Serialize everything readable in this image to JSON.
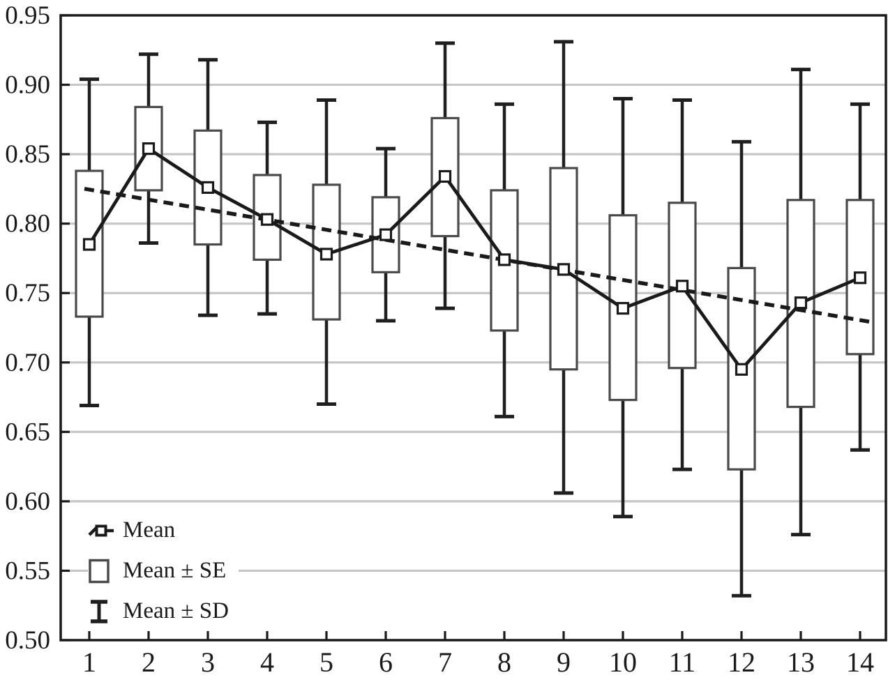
{
  "chart_data": {
    "type": "box",
    "title": "",
    "xlabel": "",
    "ylabel": "",
    "description": "Means with Mean±SE boxes, Mean±SD whiskers and dashed linear trend across 14 categories",
    "categories": [
      "1",
      "2",
      "3",
      "4",
      "5",
      "6",
      "7",
      "8",
      "9",
      "10",
      "11",
      "12",
      "13",
      "14"
    ],
    "ylim": [
      0.5,
      0.95
    ],
    "grid": true,
    "yticks": [
      {
        "label": "0.95",
        "value": 0.95,
        "grid": false
      },
      {
        "label": "0.90",
        "value": 0.9,
        "grid": true
      },
      {
        "label": "0.85",
        "value": 0.85,
        "grid": true
      },
      {
        "label": "0.80",
        "value": 0.8,
        "grid": true
      },
      {
        "label": "0.75",
        "value": 0.75,
        "grid": true
      },
      {
        "label": "0.70",
        "value": 0.7,
        "grid": true
      },
      {
        "label": "0.65",
        "value": 0.65,
        "grid": true
      },
      {
        "label": "0.60",
        "value": 0.6,
        "grid": true
      },
      {
        "label": "0.55",
        "value": 0.55,
        "grid": true
      },
      {
        "label": "0.50",
        "value": 0.5,
        "grid": false
      }
    ],
    "series": [
      {
        "name": "Mean",
        "type": "line",
        "marker": "open-square",
        "values": [
          0.785,
          0.854,
          0.826,
          0.803,
          0.778,
          0.792,
          0.834,
          0.774,
          0.767,
          0.739,
          0.755,
          0.695,
          0.743,
          0.761
        ]
      },
      {
        "name": "Mean ± SE",
        "type": "box",
        "high": [
          0.838,
          0.884,
          0.867,
          0.835,
          0.828,
          0.819,
          0.876,
          0.824,
          0.84,
          0.806,
          0.815,
          0.768,
          0.817,
          0.817
        ],
        "low": [
          0.733,
          0.824,
          0.785,
          0.774,
          0.731,
          0.765,
          0.791,
          0.723,
          0.695,
          0.673,
          0.696,
          0.623,
          0.668,
          0.706
        ]
      },
      {
        "name": "Mean ± SD",
        "type": "whisker",
        "high": [
          0.904,
          0.922,
          0.918,
          0.873,
          0.889,
          0.854,
          0.93,
          0.886,
          0.931,
          0.89,
          0.889,
          0.859,
          0.911,
          0.886
        ],
        "low": [
          0.669,
          0.786,
          0.734,
          0.735,
          0.67,
          0.73,
          0.739,
          0.661,
          0.606,
          0.589,
          0.623,
          0.532,
          0.576,
          0.637
        ]
      },
      {
        "name": "Linear trend",
        "type": "dashed-line",
        "y_at_first_category": 0.8245,
        "y_at_last_category": 0.7305
      }
    ],
    "legend": {
      "position": "bottom-left-inside",
      "items": [
        {
          "label": "Mean",
          "icon": "square-marker-on-line"
        },
        {
          "label": "Mean ± SE",
          "icon": "open-box"
        },
        {
          "label": "Mean ± SD",
          "icon": "whisker-ibeam"
        }
      ]
    },
    "colors": {
      "line": "#1a1a1a",
      "whisker": "#1f1f1f",
      "box_border": "#4a4a4a",
      "box_fill": "#ffffff",
      "grid": "#c6c6c6",
      "frame": "#1a1a1a",
      "text": "#1a1a1a",
      "background": "#ffffff"
    }
  }
}
